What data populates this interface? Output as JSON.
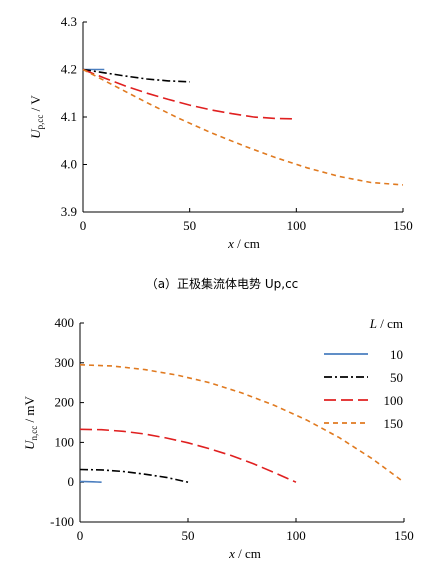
{
  "chart_data": [
    {
      "type": "line",
      "caption": "（a）正极集流体电势 Up,cc",
      "xlabel": "x / cm",
      "ylabel": "Up,cc / V",
      "xlim": [
        0,
        150
      ],
      "ylim": [
        3.9,
        4.3
      ],
      "xticks": [
        "0",
        "50",
        "100",
        "150"
      ],
      "yticks": [
        "3.9",
        "4.0",
        "4.1",
        "4.2",
        "4.3"
      ],
      "series": [
        {
          "L": 10,
          "color": "#4a7ebf",
          "dash": "solid",
          "x": [
            0,
            10
          ],
          "y": [
            4.2,
            4.2
          ]
        },
        {
          "L": 50,
          "color": "#000000",
          "dash": "dashdot",
          "x": [
            0,
            10,
            20,
            30,
            40,
            50
          ],
          "y": [
            4.2,
            4.193,
            4.186,
            4.18,
            4.176,
            4.174
          ]
        },
        {
          "L": 100,
          "color": "#e02020",
          "dash": "longdash",
          "x": [
            0,
            10,
            20,
            30,
            40,
            50,
            60,
            70,
            80,
            90,
            100
          ],
          "y": [
            4.2,
            4.182,
            4.165,
            4.15,
            4.137,
            4.125,
            4.115,
            4.107,
            4.1,
            4.097,
            4.096
          ]
        },
        {
          "L": 150,
          "color": "#e07a20",
          "dash": "dash",
          "x": [
            0,
            15,
            30,
            45,
            60,
            75,
            90,
            105,
            120,
            135,
            150
          ],
          "y": [
            4.2,
            4.165,
            4.13,
            4.097,
            4.067,
            4.04,
            4.015,
            3.993,
            3.975,
            3.962,
            3.957
          ]
        }
      ]
    },
    {
      "type": "line",
      "xlabel": "x / cm",
      "ylabel": "Un,cc / mV",
      "xlim": [
        0,
        150
      ],
      "ylim": [
        -100,
        400
      ],
      "xticks": [
        "0",
        "50",
        "100",
        "150"
      ],
      "yticks": [
        "-100",
        "0",
        "100",
        "200",
        "300",
        "400"
      ],
      "legend": {
        "title": "L / cm",
        "position": "top-right",
        "entries": [
          "10",
          "50",
          "100",
          "150"
        ]
      },
      "series": [
        {
          "L": 10,
          "color": "#4a7ebf",
          "dash": "solid",
          "x": [
            0,
            2,
            4,
            6,
            8,
            10
          ],
          "y": [
            1.5,
            1.45,
            1.3,
            1.0,
            0.6,
            0
          ]
        },
        {
          "L": 50,
          "color": "#000000",
          "dash": "dashdot",
          "x": [
            0,
            10,
            20,
            30,
            40,
            50
          ],
          "y": [
            32,
            31,
            27,
            20,
            12,
            0
          ]
        },
        {
          "L": 100,
          "color": "#e02020",
          "dash": "longdash",
          "x": [
            0,
            10,
            20,
            30,
            40,
            50,
            60,
            70,
            80,
            90,
            100
          ],
          "y": [
            133,
            132,
            128,
            121,
            111,
            99,
            84,
            67,
            47,
            24,
            0
          ]
        },
        {
          "L": 150,
          "color": "#e07a20",
          "dash": "dash",
          "x": [
            0,
            15,
            30,
            45,
            60,
            75,
            90,
            105,
            120,
            135,
            150
          ],
          "y": [
            295,
            292,
            283,
            269,
            250,
            224,
            193,
            156,
            112,
            60,
            0
          ]
        }
      ]
    }
  ]
}
